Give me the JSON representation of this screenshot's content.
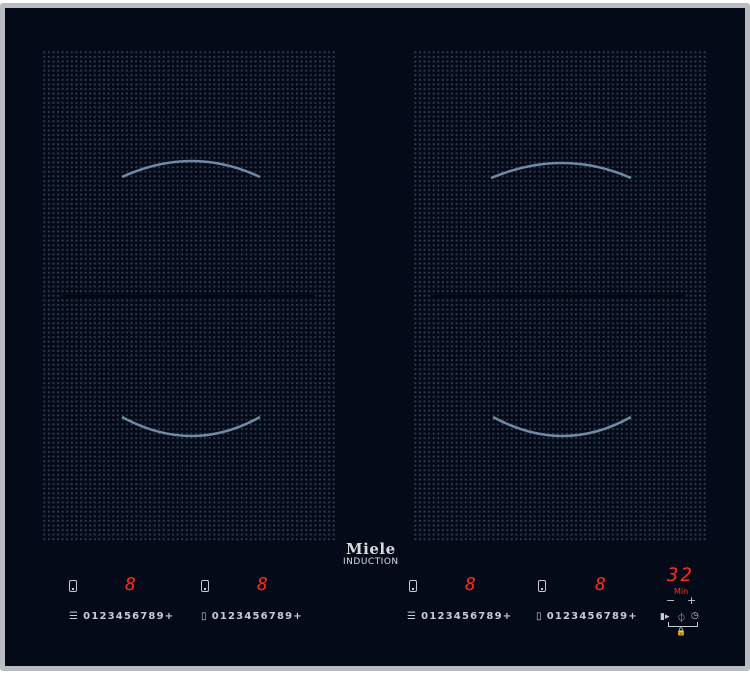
{
  "brand": {
    "name": "Miele",
    "subtitle": "INDUCTION"
  },
  "zones": [
    {
      "display": "8",
      "scale": "0123456789+",
      "icon": "zone-left-front-icon"
    },
    {
      "display": "8",
      "scale": "0123456789+",
      "icon": "zone-left-rear-icon"
    },
    {
      "display": "8",
      "scale": "0123456789+",
      "icon": "zone-right-front-icon"
    },
    {
      "display": "8",
      "scale": "0123456789+",
      "icon": "zone-right-rear-icon"
    }
  ],
  "timer": {
    "value": "32",
    "unit": "Min",
    "minus": "−",
    "plus": "+"
  },
  "controls": {
    "booster": "▮▸",
    "power": "⏀",
    "clock": "◷",
    "lock": "🔒"
  },
  "colors": {
    "glass": "#050a18",
    "display": "#ff2a1a",
    "frame": "#b9bcc0"
  }
}
